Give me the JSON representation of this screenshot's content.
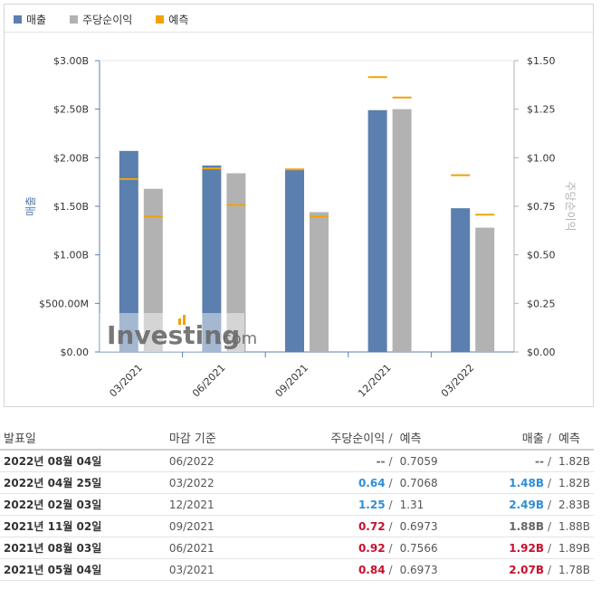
{
  "legend": [
    {
      "name": "매출",
      "color": "#5b7fae"
    },
    {
      "name": "주당순이익",
      "color": "#b2b2b2"
    },
    {
      "name": "예측",
      "color": "#f0a30a"
    }
  ],
  "chart_data": {
    "type": "bar",
    "categories": [
      "03/2021",
      "06/2021",
      "09/2021",
      "12/2021",
      "03/2022"
    ],
    "series": [
      {
        "name": "매출",
        "axis": "left",
        "values": [
          2.07,
          1.92,
          1.88,
          2.49,
          1.48
        ]
      },
      {
        "name": "주당순이익",
        "axis": "right",
        "values": [
          0.84,
          0.92,
          0.72,
          1.25,
          0.64
        ]
      }
    ],
    "forecast": {
      "name": "예측",
      "revenue": [
        1.78,
        1.89,
        1.88,
        2.83,
        1.82
      ],
      "eps": [
        0.6973,
        0.7566,
        0.6973,
        1.31,
        0.7068
      ]
    },
    "ylabel_left": "매출",
    "ylabel_right": "주당순이익",
    "ylim_left": [
      0,
      3
    ],
    "ylim_right": [
      0,
      1.5
    ],
    "yticks_left": [
      "$0.00",
      "$500.00M",
      "$1.00B",
      "$1.50B",
      "$2.00B",
      "$2.50B",
      "$3.00B"
    ],
    "yticks_right": [
      "$0.00",
      "$0.25",
      "$0.50",
      "$0.75",
      "$1.00",
      "$1.25",
      "$1.50"
    ],
    "grid": false,
    "legend_position": "top-left",
    "watermark": "Investing.com"
  },
  "table": {
    "headers": {
      "date": "발표일",
      "period": "마감 기준",
      "eps": "주당순이익",
      "eps_forecast": "예측",
      "revenue": "매출",
      "revenue_forecast": "예측"
    },
    "rows": [
      {
        "date": "2022년 08월 04일",
        "period": "06/2022",
        "eps": "--",
        "eps_class": "neutral",
        "eps_forecast": "0.7059",
        "revenue": "--",
        "rev_class": "neutral",
        "revenue_forecast": "1.82B"
      },
      {
        "date": "2022년 04월 25일",
        "period": "03/2022",
        "eps": "0.64",
        "eps_class": "pos",
        "eps_forecast": "0.7068",
        "revenue": "1.48B",
        "rev_class": "pos",
        "revenue_forecast": "1.82B"
      },
      {
        "date": "2022년 02월 03일",
        "period": "12/2021",
        "eps": "1.25",
        "eps_class": "pos",
        "eps_forecast": "1.31",
        "revenue": "2.49B",
        "rev_class": "pos",
        "revenue_forecast": "2.83B"
      },
      {
        "date": "2021년 11월 02일",
        "period": "09/2021",
        "eps": "0.72",
        "eps_class": "neg",
        "eps_forecast": "0.6973",
        "revenue": "1.88B",
        "rev_class": "neutral",
        "revenue_forecast": "1.88B"
      },
      {
        "date": "2021년 08월 03일",
        "period": "06/2021",
        "eps": "0.92",
        "eps_class": "neg",
        "eps_forecast": "0.7566",
        "revenue": "1.92B",
        "rev_class": "neg",
        "revenue_forecast": "1.89B"
      },
      {
        "date": "2021년 05월 04일",
        "period": "03/2021",
        "eps": "0.84",
        "eps_class": "neg",
        "eps_forecast": "0.6973",
        "revenue": "2.07B",
        "rev_class": "neg",
        "revenue_forecast": "1.78B"
      }
    ]
  }
}
